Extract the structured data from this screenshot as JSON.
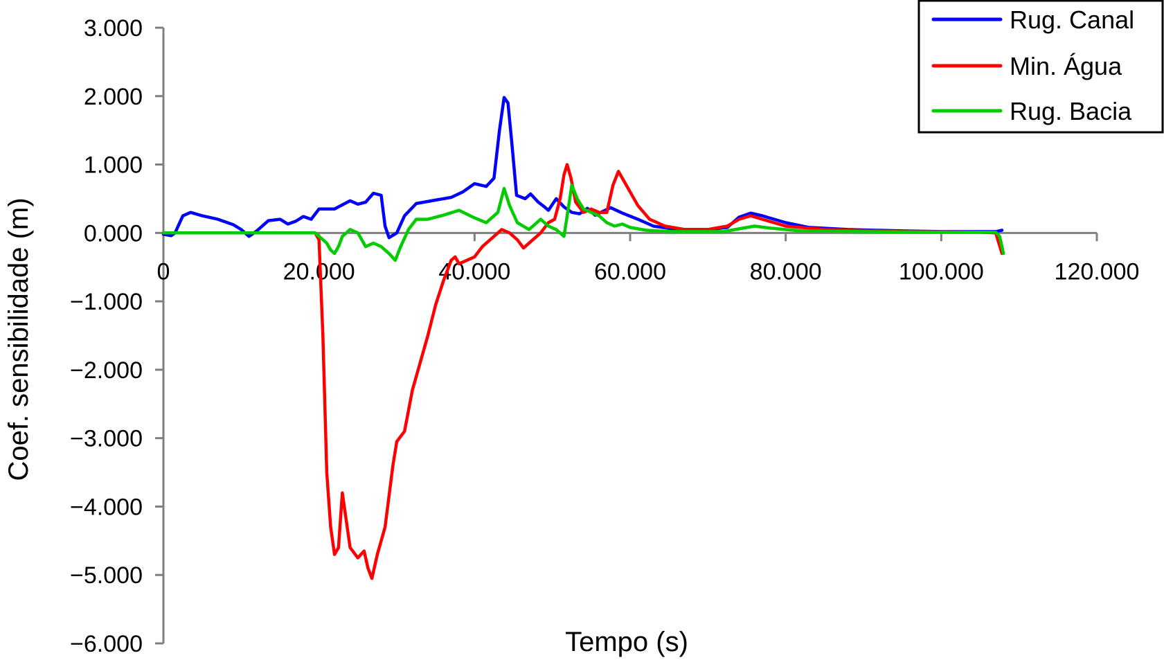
{
  "chart_data": {
    "type": "line",
    "title": "",
    "xlabel": "Tempo (s)",
    "ylabel": "Coef. sensibilidade (m)",
    "xlim": [
      0,
      120000
    ],
    "ylim": [
      -6000,
      3000
    ],
    "x_ticks": [
      {
        "value": 0,
        "label": "0"
      },
      {
        "value": 20000,
        "label": "20.000"
      },
      {
        "value": 40000,
        "label": "40.000"
      },
      {
        "value": 60000,
        "label": "60.000"
      },
      {
        "value": 80000,
        "label": "80.000"
      },
      {
        "value": 100000,
        "label": "100.000"
      },
      {
        "value": 120000,
        "label": "120.000"
      }
    ],
    "y_ticks": [
      {
        "value": 3000,
        "label": "3.000"
      },
      {
        "value": 2000,
        "label": "2.000"
      },
      {
        "value": 1000,
        "label": "1.000"
      },
      {
        "value": 0,
        "label": "0.000"
      },
      {
        "value": -1000,
        "label": "−1.000"
      },
      {
        "value": -2000,
        "label": "−2.000"
      },
      {
        "value": -3000,
        "label": "−3.000"
      },
      {
        "value": -4000,
        "label": "−4.000"
      },
      {
        "value": -5000,
        "label": "−5.000"
      },
      {
        "value": -6000,
        "label": "−6.000"
      }
    ],
    "grid": false,
    "legend_position": "top-right",
    "series": [
      {
        "name": "Rug. Canal",
        "color": "#0000ff",
        "points": [
          [
            0,
            -20
          ],
          [
            1000,
            -40
          ],
          [
            1500,
            0
          ],
          [
            2500,
            250
          ],
          [
            3500,
            300
          ],
          [
            5000,
            250
          ],
          [
            7000,
            200
          ],
          [
            9000,
            120
          ],
          [
            10000,
            50
          ],
          [
            11000,
            -50
          ],
          [
            12000,
            30
          ],
          [
            13500,
            180
          ],
          [
            15000,
            200
          ],
          [
            16000,
            130
          ],
          [
            17000,
            170
          ],
          [
            18000,
            240
          ],
          [
            19000,
            200
          ],
          [
            20000,
            350
          ],
          [
            22000,
            350
          ],
          [
            24000,
            470
          ],
          [
            25000,
            420
          ],
          [
            26000,
            450
          ],
          [
            27000,
            580
          ],
          [
            28000,
            550
          ],
          [
            28500,
            100
          ],
          [
            29000,
            -70
          ],
          [
            30000,
            0
          ],
          [
            31000,
            250
          ],
          [
            32500,
            430
          ],
          [
            35000,
            480
          ],
          [
            37000,
            520
          ],
          [
            38500,
            600
          ],
          [
            40000,
            720
          ],
          [
            41500,
            680
          ],
          [
            42500,
            800
          ],
          [
            43200,
            1500
          ],
          [
            43800,
            1980
          ],
          [
            44300,
            1900
          ],
          [
            44800,
            1300
          ],
          [
            45400,
            550
          ],
          [
            46500,
            500
          ],
          [
            47200,
            570
          ],
          [
            48200,
            450
          ],
          [
            49000,
            380
          ],
          [
            49500,
            330
          ],
          [
            50500,
            500
          ],
          [
            51500,
            380
          ],
          [
            52500,
            300
          ],
          [
            53500,
            280
          ],
          [
            54500,
            360
          ],
          [
            55500,
            260
          ],
          [
            57500,
            370
          ],
          [
            59000,
            290
          ],
          [
            61000,
            200
          ],
          [
            63000,
            100
          ],
          [
            66000,
            50
          ],
          [
            70000,
            50
          ],
          [
            72500,
            80
          ],
          [
            74000,
            230
          ],
          [
            75500,
            290
          ],
          [
            77000,
            250
          ],
          [
            80000,
            150
          ],
          [
            83000,
            80
          ],
          [
            88000,
            50
          ],
          [
            95000,
            30
          ],
          [
            100000,
            20
          ],
          [
            105000,
            20
          ],
          [
            107000,
            20
          ],
          [
            107800,
            40
          ]
        ]
      },
      {
        "name": "Min. Água",
        "color": "#ff0000",
        "points": [
          [
            0,
            0
          ],
          [
            19500,
            0
          ],
          [
            20000,
            -100
          ],
          [
            20500,
            -1500
          ],
          [
            21000,
            -3500
          ],
          [
            21500,
            -4300
          ],
          [
            22000,
            -4700
          ],
          [
            22500,
            -4600
          ],
          [
            23000,
            -3800
          ],
          [
            23500,
            -4200
          ],
          [
            24000,
            -4600
          ],
          [
            25000,
            -4750
          ],
          [
            25800,
            -4650
          ],
          [
            26300,
            -4900
          ],
          [
            26800,
            -5050
          ],
          [
            27500,
            -4700
          ],
          [
            28500,
            -4300
          ],
          [
            29500,
            -3400
          ],
          [
            30000,
            -3050
          ],
          [
            31000,
            -2900
          ],
          [
            32000,
            -2300
          ],
          [
            33000,
            -1900
          ],
          [
            34000,
            -1500
          ],
          [
            35000,
            -1050
          ],
          [
            36000,
            -700
          ],
          [
            37000,
            -400
          ],
          [
            37500,
            -350
          ],
          [
            38000,
            -450
          ],
          [
            40000,
            -350
          ],
          [
            41000,
            -200
          ],
          [
            42000,
            -100
          ],
          [
            43500,
            50
          ],
          [
            44500,
            0
          ],
          [
            45500,
            -100
          ],
          [
            46300,
            -220
          ],
          [
            47000,
            -150
          ],
          [
            48500,
            0
          ],
          [
            49500,
            150
          ],
          [
            50300,
            200
          ],
          [
            51000,
            500
          ],
          [
            51500,
            850
          ],
          [
            51900,
            1000
          ],
          [
            52400,
            800
          ],
          [
            53000,
            450
          ],
          [
            54000,
            300
          ],
          [
            55000,
            350
          ],
          [
            56000,
            300
          ],
          [
            57000,
            300
          ],
          [
            57800,
            700
          ],
          [
            58500,
            900
          ],
          [
            59500,
            700
          ],
          [
            61000,
            400
          ],
          [
            62500,
            200
          ],
          [
            64500,
            100
          ],
          [
            67000,
            50
          ],
          [
            70000,
            50
          ],
          [
            72500,
            100
          ],
          [
            74000,
            200
          ],
          [
            75500,
            250
          ],
          [
            77000,
            200
          ],
          [
            80000,
            100
          ],
          [
            85000,
            50
          ],
          [
            95000,
            20
          ],
          [
            105000,
            10
          ],
          [
            107000,
            0
          ],
          [
            107800,
            -300
          ]
        ]
      },
      {
        "name": "Rug. Bacia",
        "color": "#00cc00",
        "points": [
          [
            0,
            0
          ],
          [
            19500,
            0
          ],
          [
            20500,
            -100
          ],
          [
            21000,
            -150
          ],
          [
            21500,
            -250
          ],
          [
            22000,
            -300
          ],
          [
            22500,
            -200
          ],
          [
            23000,
            -50
          ],
          [
            24000,
            50
          ],
          [
            25000,
            0
          ],
          [
            26000,
            -200
          ],
          [
            27000,
            -150
          ],
          [
            28000,
            -200
          ],
          [
            29000,
            -300
          ],
          [
            29800,
            -400
          ],
          [
            30500,
            -200
          ],
          [
            31500,
            50
          ],
          [
            32500,
            200
          ],
          [
            34000,
            200
          ],
          [
            36000,
            260
          ],
          [
            38000,
            330
          ],
          [
            40000,
            220
          ],
          [
            41500,
            150
          ],
          [
            43000,
            300
          ],
          [
            43800,
            650
          ],
          [
            44500,
            400
          ],
          [
            45500,
            150
          ],
          [
            47000,
            50
          ],
          [
            48500,
            200
          ],
          [
            49500,
            100
          ],
          [
            50500,
            50
          ],
          [
            51500,
            -50
          ],
          [
            52500,
            700
          ],
          [
            53200,
            500
          ],
          [
            54000,
            350
          ],
          [
            55000,
            300
          ],
          [
            56000,
            250
          ],
          [
            57000,
            150
          ],
          [
            58000,
            100
          ],
          [
            59000,
            130
          ],
          [
            60000,
            80
          ],
          [
            62000,
            40
          ],
          [
            65000,
            20
          ],
          [
            72000,
            20
          ],
          [
            74000,
            60
          ],
          [
            76000,
            100
          ],
          [
            78000,
            70
          ],
          [
            82000,
            30
          ],
          [
            90000,
            20
          ],
          [
            100000,
            10
          ],
          [
            107000,
            10
          ],
          [
            107500,
            -50
          ],
          [
            108000,
            -300
          ]
        ]
      }
    ]
  }
}
